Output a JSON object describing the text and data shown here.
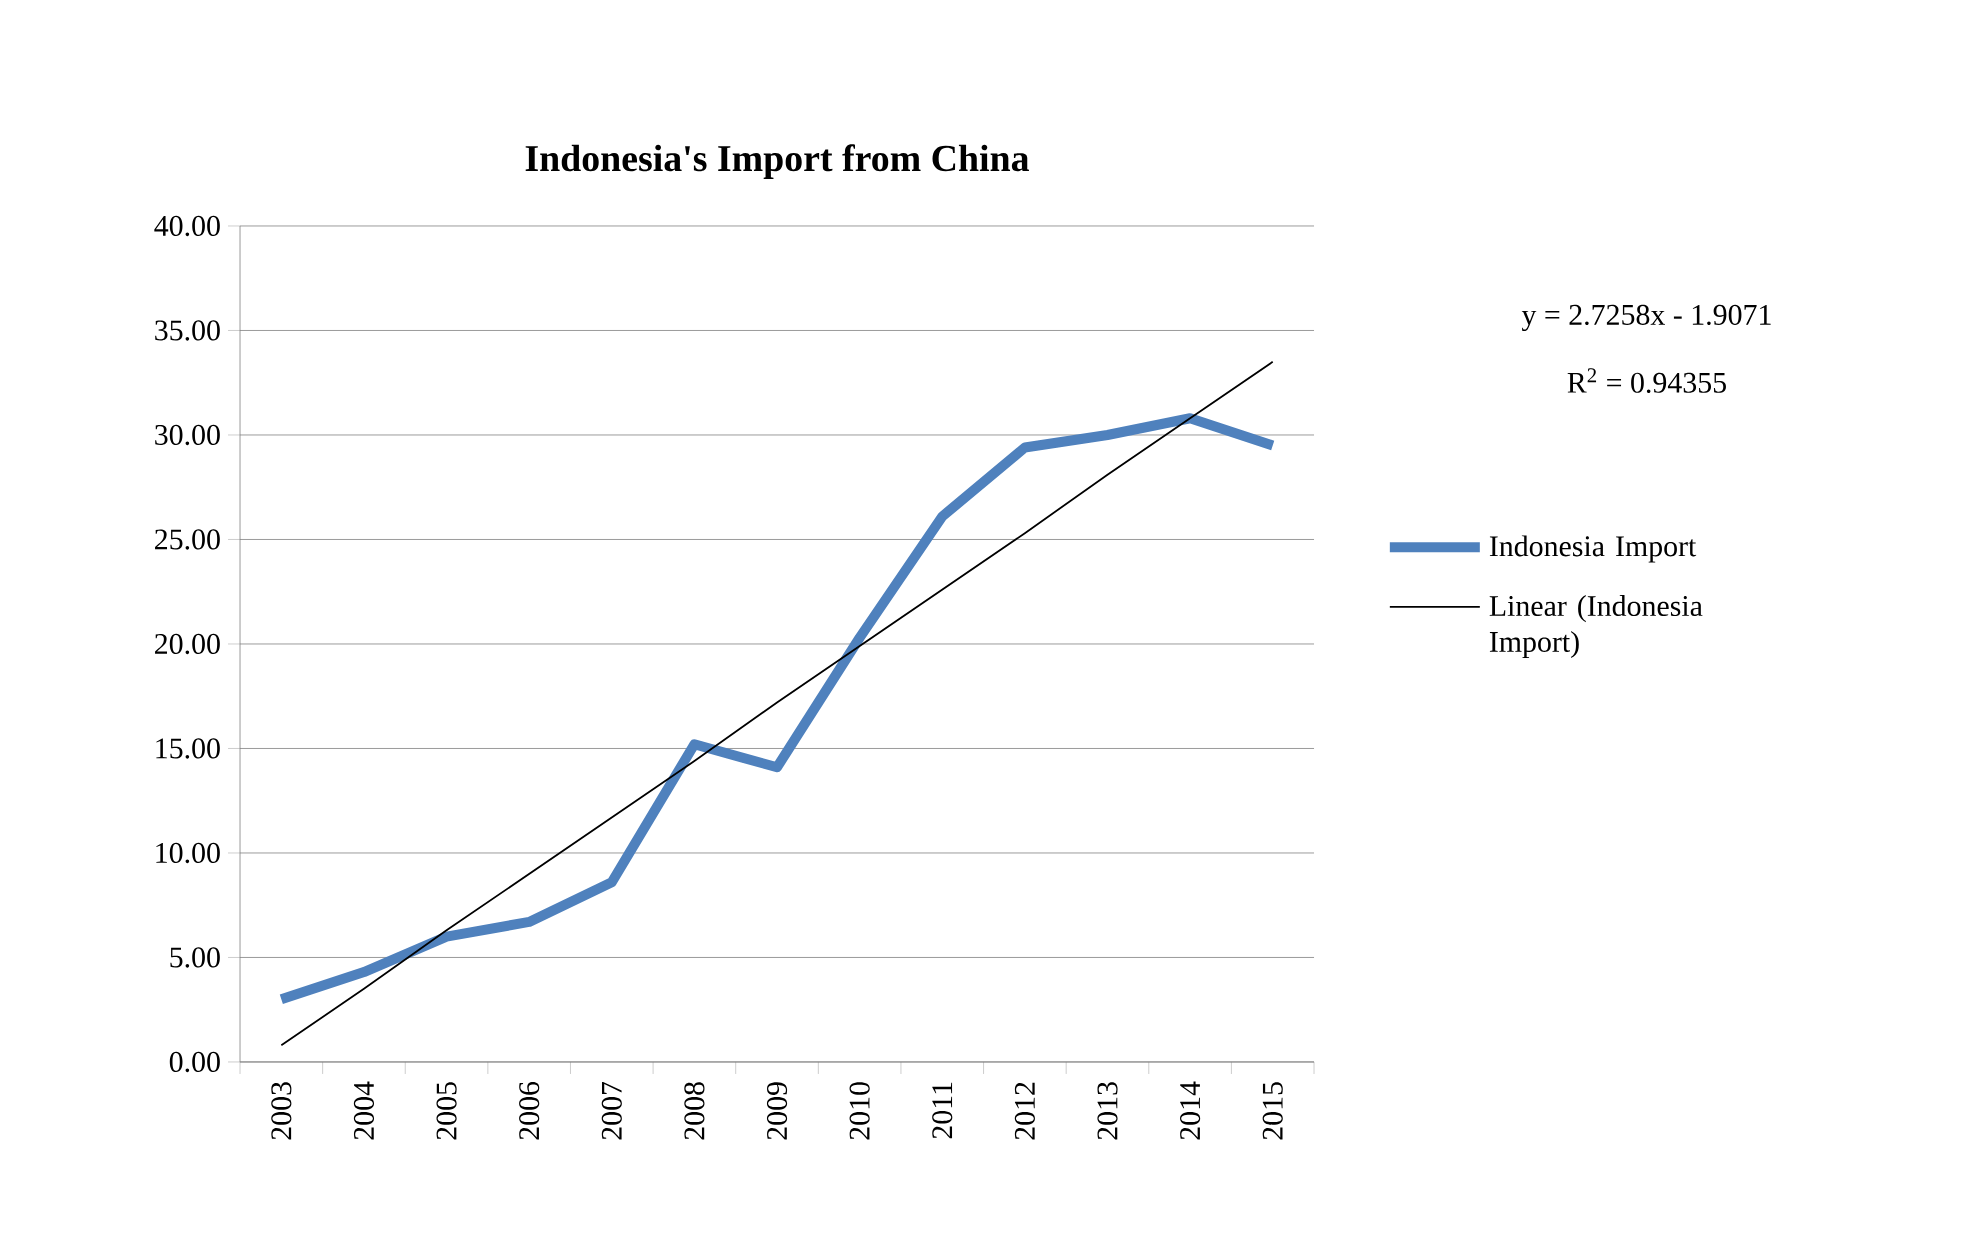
{
  "chart_data": {
    "type": "line",
    "title": "Indonesia's Import from China",
    "categories": [
      "2003",
      "2004",
      "2005",
      "2006",
      "2007",
      "2008",
      "2009",
      "2010",
      "2011",
      "2012",
      "2013",
      "2014",
      "2015"
    ],
    "series": [
      {
        "name": "Indonesia Import",
        "color": "#4f81bd",
        "values": [
          3.0,
          4.3,
          6.0,
          6.7,
          8.6,
          15.2,
          14.1,
          20.3,
          26.1,
          29.4,
          30.0,
          30.8,
          29.5
        ]
      },
      {
        "name": "Linear (Indonesia Import)",
        "type": "line",
        "color": "#000000",
        "values": [
          0.8,
          3.5,
          6.3,
          9.0,
          11.7,
          14.4,
          17.2,
          19.9,
          22.6,
          25.3,
          28.1,
          30.8,
          33.5
        ]
      }
    ],
    "ylim": [
      0,
      40
    ],
    "yticks": [
      {
        "value": 0,
        "label": "0.00"
      },
      {
        "value": 5,
        "label": "5.00"
      },
      {
        "value": 10,
        "label": "10.00"
      },
      {
        "value": 15,
        "label": "15.00"
      },
      {
        "value": 20,
        "label": "20.00"
      },
      {
        "value": 25,
        "label": "25.00"
      },
      {
        "value": 30,
        "label": "30.00"
      },
      {
        "value": 35,
        "label": "35.00"
      },
      {
        "value": 40,
        "label": "40.00"
      }
    ],
    "grid": "y",
    "legend": "right",
    "marker": "none",
    "annotations": [
      "y = 2.7258x - 1.9071",
      "R$^{2}$ = 0.94355"
    ]
  }
}
